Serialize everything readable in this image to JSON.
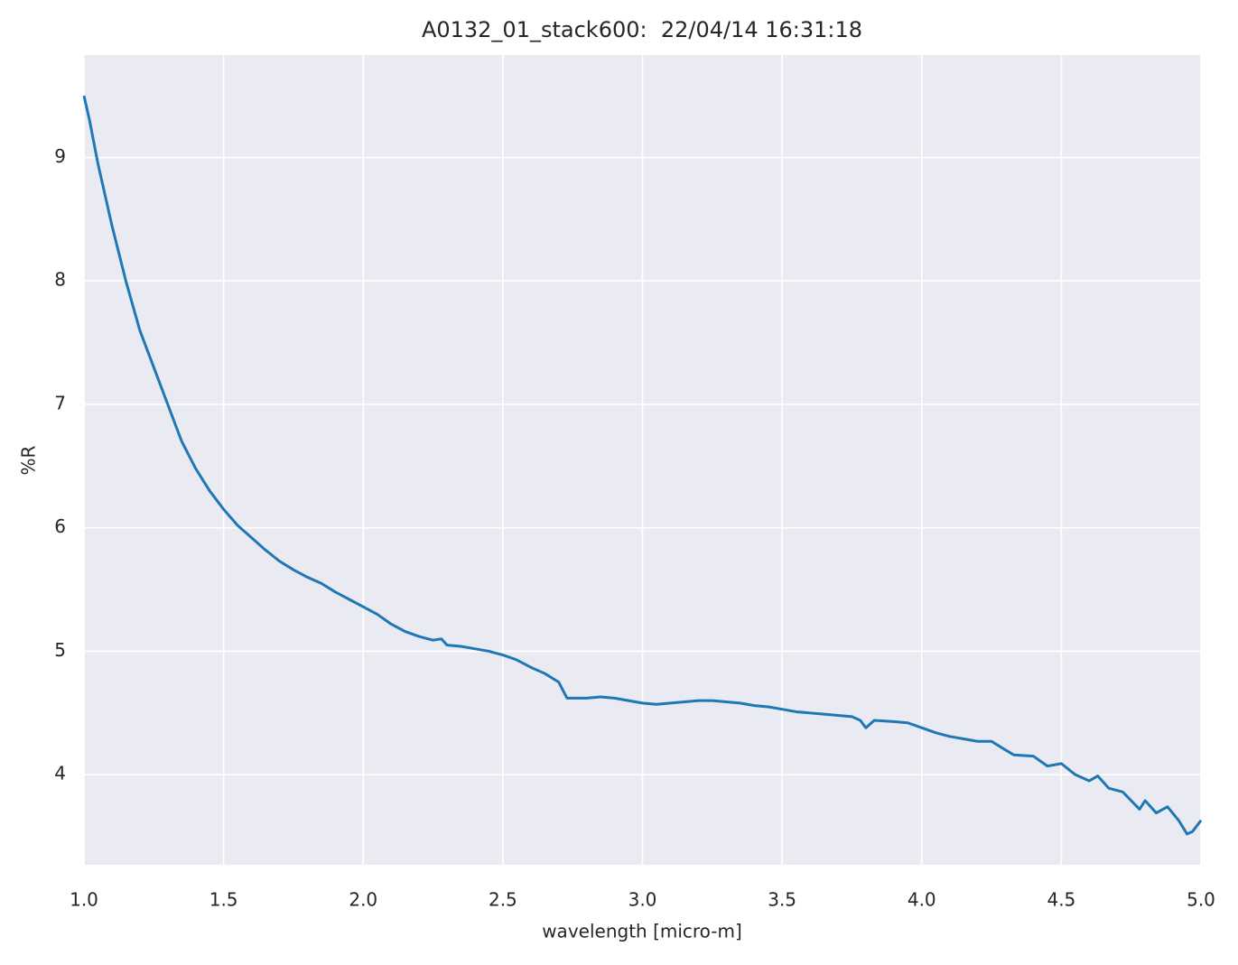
{
  "chart_data": {
    "type": "line",
    "title": "A0132_01_stack600:  22/04/14 16:31:18",
    "xlabel": "wavelength [micro-m]",
    "ylabel": "%R",
    "x": [
      1.0,
      1.02,
      1.05,
      1.1,
      1.15,
      1.2,
      1.25,
      1.3,
      1.35,
      1.4,
      1.45,
      1.5,
      1.55,
      1.6,
      1.65,
      1.7,
      1.75,
      1.8,
      1.85,
      1.9,
      1.95,
      2.0,
      2.05,
      2.1,
      2.15,
      2.2,
      2.25,
      2.28,
      2.3,
      2.35,
      2.4,
      2.45,
      2.5,
      2.55,
      2.6,
      2.65,
      2.7,
      2.73,
      2.8,
      2.85,
      2.9,
      2.95,
      3.0,
      3.05,
      3.1,
      3.15,
      3.2,
      3.25,
      3.3,
      3.35,
      3.4,
      3.45,
      3.5,
      3.55,
      3.6,
      3.65,
      3.7,
      3.75,
      3.78,
      3.8,
      3.83,
      3.9,
      3.95,
      4.0,
      4.05,
      4.1,
      4.15,
      4.2,
      4.25,
      4.3,
      4.33,
      4.4,
      4.45,
      4.5,
      4.55,
      4.6,
      4.63,
      4.67,
      4.72,
      4.78,
      4.8,
      4.84,
      4.88,
      4.92,
      4.95,
      4.97,
      5.0
    ],
    "series": [
      {
        "name": "%R",
        "color": "#1f77b4",
        "values": [
          9.5,
          9.3,
          8.95,
          8.45,
          8.0,
          7.6,
          7.3,
          7.0,
          6.7,
          6.48,
          6.3,
          6.15,
          6.02,
          5.92,
          5.82,
          5.73,
          5.66,
          5.6,
          5.55,
          5.48,
          5.42,
          5.36,
          5.3,
          5.22,
          5.16,
          5.12,
          5.09,
          5.1,
          5.05,
          5.04,
          5.02,
          5.0,
          4.97,
          4.93,
          4.87,
          4.82,
          4.75,
          4.62,
          4.62,
          4.63,
          4.62,
          4.6,
          4.58,
          4.57,
          4.58,
          4.59,
          4.6,
          4.6,
          4.59,
          4.58,
          4.56,
          4.55,
          4.53,
          4.51,
          4.5,
          4.49,
          4.48,
          4.47,
          4.44,
          4.38,
          4.44,
          4.43,
          4.42,
          4.38,
          4.34,
          4.31,
          4.29,
          4.27,
          4.27,
          4.2,
          4.16,
          4.15,
          4.07,
          4.09,
          4.0,
          3.95,
          3.99,
          3.89,
          3.86,
          3.72,
          3.79,
          3.69,
          3.74,
          3.63,
          3.52,
          3.54,
          3.63
        ]
      }
    ],
    "xlim": [
      1.0,
      5.0
    ],
    "xticks": [
      {
        "value": 1.0,
        "label": "1.0"
      },
      1.5,
      {
        "value": 2.0,
        "label": "2.0"
      },
      2.5,
      {
        "value": 3.0,
        "label": "3.0"
      },
      3.5,
      {
        "value": 4.0,
        "label": "4.0"
      },
      4.5,
      {
        "value": 5.0,
        "label": "5.0"
      }
    ],
    "ylim": [
      3.27,
      9.83
    ],
    "yticks": [
      4,
      5,
      6,
      7,
      8,
      9
    ],
    "grid": true
  }
}
